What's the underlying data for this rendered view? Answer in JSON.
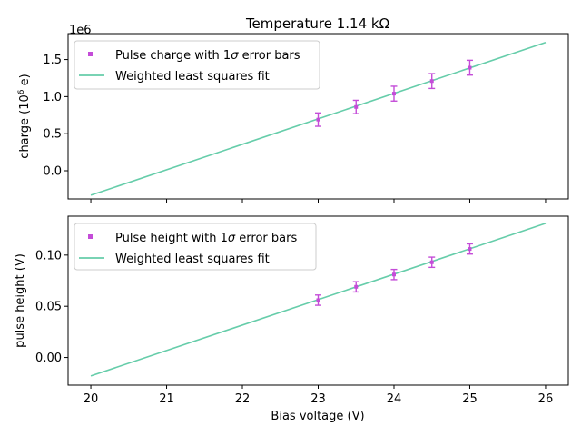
{
  "chart_data": [
    {
      "type": "scatter",
      "title": "Temperature 1.14 kΩ",
      "xlabel": "",
      "ylabel": "charge (10^6 e)",
      "ylabel_base": "charge (10",
      "ylabel_sup": "6",
      "ylabel_end": " e)",
      "offset_text": "1e6",
      "xlim": [
        19.7,
        26.3
      ],
      "ylim": [
        -0.38,
        1.85
      ],
      "yticks": [
        0.0,
        0.5,
        1.0,
        1.5
      ],
      "ytick_labels": [
        "0.0",
        "0.5",
        "1.0",
        "1.5"
      ],
      "xticks": [
        20,
        21,
        22,
        23,
        24,
        25,
        26
      ],
      "xtick_labels_shown": false,
      "grid": false,
      "legend_position": "upper-left",
      "series": [
        {
          "name": "Pulse charge with 1σ error bars",
          "kind": "points_with_errorbars",
          "color": "#c44cd8",
          "x": [
            23.0,
            23.5,
            24.0,
            24.5,
            25.0
          ],
          "y": [
            0.69,
            0.86,
            1.04,
            1.21,
            1.39
          ],
          "yerr": [
            0.09,
            0.09,
            0.1,
            0.1,
            0.1
          ]
        },
        {
          "name": "Weighted least squares fit",
          "kind": "line",
          "color": "#66cdaa",
          "x": [
            20.0,
            26.0
          ],
          "y": [
            -0.33,
            1.73
          ]
        }
      ]
    },
    {
      "type": "scatter",
      "title": "",
      "xlabel": "Bias voltage (V)",
      "ylabel": "pulse height (V)",
      "xlim": [
        19.7,
        26.3
      ],
      "ylim": [
        -0.027,
        0.138
      ],
      "yticks": [
        0.0,
        0.05,
        0.1
      ],
      "ytick_labels": [
        "0.00",
        "0.05",
        "0.10"
      ],
      "xticks": [
        20,
        21,
        22,
        23,
        24,
        25,
        26
      ],
      "xtick_labels": [
        "20",
        "21",
        "22",
        "23",
        "24",
        "25",
        "26"
      ],
      "grid": false,
      "legend_position": "upper-left",
      "series": [
        {
          "name": "Pulse height with 1σ error bars",
          "name_base": "Pulse height with 1",
          "name_sigma": "σ",
          "name_end": " error bars",
          "kind": "points_with_errorbars",
          "color": "#c44cd8",
          "x": [
            23.0,
            23.5,
            24.0,
            24.5,
            25.0
          ],
          "y": [
            0.056,
            0.069,
            0.081,
            0.093,
            0.106
          ],
          "yerr": [
            0.005,
            0.005,
            0.005,
            0.005,
            0.005
          ]
        },
        {
          "name": "Weighted least squares fit",
          "kind": "line",
          "color": "#66cdaa",
          "x": [
            20.0,
            26.0
          ],
          "y": [
            -0.018,
            0.131
          ]
        }
      ]
    }
  ],
  "legend_top": {
    "charge_base": "Pulse charge with 1",
    "charge_sigma": "σ",
    "charge_end": " error bars"
  }
}
